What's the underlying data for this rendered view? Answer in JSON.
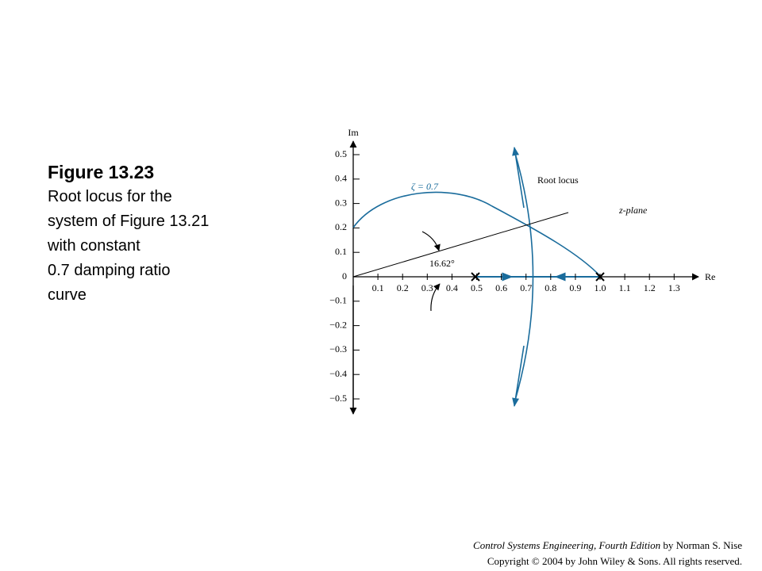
{
  "caption": {
    "title": "Figure 13.23",
    "lines": [
      "Root locus for the",
      "system of Figure 13.21",
      "with constant",
      "0.7 damping ratio",
      "curve"
    ]
  },
  "figure": {
    "y_axis_label": "Im",
    "x_axis_label": "Re",
    "x_tick_labels": [
      "0.1",
      "0.2",
      "0.3",
      "0.4",
      "0.5",
      "0.6",
      "0.7",
      "0.8",
      "0.9",
      "1.0",
      "1.1",
      "1.2",
      "1.3"
    ],
    "y_tick_labels": [
      "0.5",
      "0.4",
      "0.3",
      "0.2",
      "0.1",
      "0",
      "−0.1",
      "−0.2",
      "−0.3",
      "−0.4",
      "−0.5"
    ],
    "zeta_label": "ζ = 0.7",
    "root_locus_label": "Root locus",
    "plane_label": "z-plane",
    "angle_label": "16.62°"
  },
  "footer": {
    "book_title": "Control Systems Engineering, Fourth Edition",
    "author": "by Norman S. Nise",
    "copyright": "Copyright © 2004 by John Wiley & Sons. All rights reserved."
  }
}
